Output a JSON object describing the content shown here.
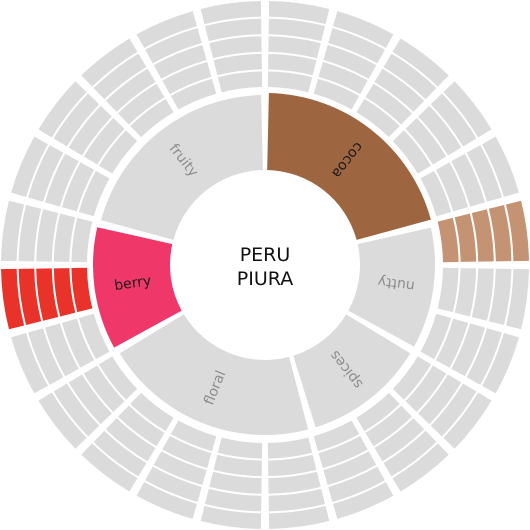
{
  "chart_data": {
    "type": "sunburst",
    "title_lines": [
      "PERU",
      "PIURA"
    ],
    "inner_ring": [
      {
        "label": "cocoa",
        "span": 76,
        "active": true,
        "color": "#9e6640",
        "text_color": "#1a1a1a"
      },
      {
        "label": "nutty",
        "span": 44,
        "active": false,
        "color": "#dcdbdc",
        "text_color": "#8c8c8c"
      },
      {
        "label": "spices",
        "span": 44,
        "active": false,
        "color": "#dcdbdc",
        "text_color": "#8c8c8c"
      },
      {
        "label": "floral",
        "span": 76,
        "active": false,
        "color": "#dcdbdc",
        "text_color": "#8c8c8c"
      },
      {
        "label": "berry",
        "span": 44,
        "active": true,
        "color": "#ef3869",
        "text_color": "#1a1a1a"
      },
      {
        "label": "fruity",
        "span": 76,
        "active": false,
        "color": "#dcdbdc",
        "text_color": "#8c8c8c"
      }
    ],
    "outer_ring": {
      "segment_count": 24,
      "rings_per_segment": 5,
      "highlighted": [
        {
          "segment_index": 5,
          "color": "#c49374"
        },
        {
          "segment_index": 17,
          "color": "#e8322a"
        }
      ],
      "default_color": "#dcdbdc"
    }
  }
}
